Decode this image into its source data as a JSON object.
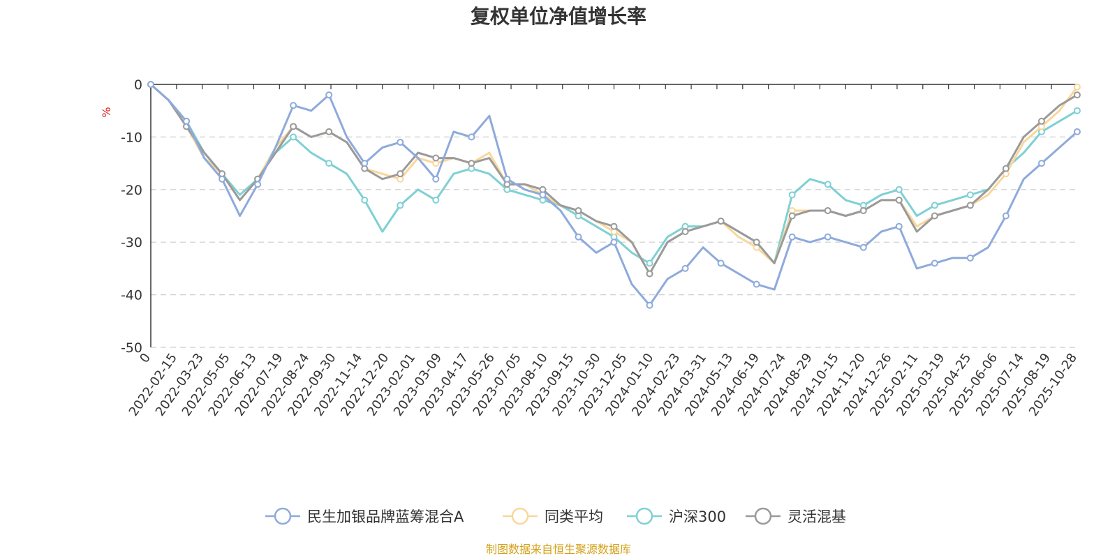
{
  "chart_data": {
    "type": "line",
    "title": "复权单位净值增长率",
    "ylabel": "%",
    "ylim": [
      -50,
      0
    ],
    "yticks": [
      0,
      -10,
      -20,
      -30,
      -40,
      -50
    ],
    "grid": true,
    "legend_position": "bottom",
    "x_labels": [
      "0",
      "2022-02-15",
      "2022-03-23",
      "2022-05-05",
      "2022-06-13",
      "2022-07-19",
      "2022-08-24",
      "2022-09-30",
      "2022-11-14",
      "2022-12-20",
      "2023-02-01",
      "2023-03-09",
      "2023-04-17",
      "2023-05-26",
      "2023-07-05",
      "2023-08-10",
      "2023-09-15",
      "2023-10-30",
      "2023-12-05",
      "2024-01-10",
      "2024-02-23",
      "2024-03-31",
      "2024-05-13",
      "2024-06-19",
      "2024-07-24",
      "2024-08-29",
      "2024-10-15",
      "2024-11-20",
      "2024-12-26",
      "2025-02-11",
      "2025-03-19",
      "2025-04-25",
      "2025-06-06",
      "2025-07-14",
      "2025-08-19",
      "2025-10-28"
    ],
    "series": [
      {
        "name": "民生加银品牌蓝筹混合A",
        "color": "#8eaadc",
        "values": [
          0,
          -3,
          -7,
          -14,
          -18,
          -25,
          -19,
          -12,
          -4,
          -5,
          -2,
          -10,
          -15,
          -12,
          -11,
          -14,
          -18,
          -9,
          -10,
          -6,
          -18,
          -20,
          -21,
          -24,
          -29,
          -32,
          -30,
          -38,
          -42,
          -37,
          -35,
          -31,
          -34,
          -36,
          -38,
          -39,
          -29,
          -30,
          -29,
          -30,
          -31,
          -28,
          -27,
          -35,
          -34,
          -33,
          -33,
          -31,
          -25,
          -18,
          -15,
          -12,
          -9
        ]
      },
      {
        "name": "同类平均",
        "color": "#f9d79b",
        "values": [
          0,
          -3,
          -8,
          -14,
          -17,
          -22,
          -18,
          -12,
          -8,
          -10,
          -9,
          -11,
          -16,
          -17,
          -18,
          -14,
          -15,
          -14,
          -15,
          -13,
          -19,
          -19,
          -21,
          -23,
          -24,
          -26,
          -28,
          -30,
          -36,
          -30,
          -28,
          -27,
          -26,
          -29,
          -31,
          -34,
          -24,
          -24,
          -24,
          -25,
          -24,
          -22,
          -22,
          -27,
          -25,
          -24,
          -23,
          -21,
          -17,
          -11,
          -8,
          -5,
          -0.5
        ]
      },
      {
        "name": "沪深300",
        "color": "#7fd0d4",
        "values": [
          0,
          -3,
          -7,
          -13,
          -17,
          -21,
          -18,
          -13,
          -10,
          -13,
          -15,
          -17,
          -22,
          -28,
          -23,
          -20,
          -22,
          -17,
          -16,
          -17,
          -20,
          -21,
          -22,
          -23,
          -25,
          -27,
          -29,
          -32,
          -34,
          -29,
          -27,
          -27,
          -26,
          -28,
          -30,
          -34,
          -21,
          -18,
          -19,
          -22,
          -23,
          -21,
          -20,
          -25,
          -23,
          -22,
          -21,
          -20,
          -16,
          -13,
          -9,
          -7,
          -5
        ]
      },
      {
        "name": "灵活混基",
        "color": "#9a9a9a",
        "values": [
          0,
          -3,
          -8,
          -13,
          -17,
          -22,
          -18,
          -13,
          -8,
          -10,
          -9,
          -11,
          -16,
          -18,
          -17,
          -13,
          -14,
          -14,
          -15,
          -14,
          -19,
          -19,
          -20,
          -23,
          -24,
          -26,
          -27,
          -30,
          -36,
          -30,
          -28,
          -27,
          -26,
          -28,
          -30,
          -34,
          -25,
          -24,
          -24,
          -25,
          -24,
          -22,
          -22,
          -28,
          -25,
          -24,
          -23,
          -20,
          -16,
          -10,
          -7,
          -4,
          -2
        ]
      }
    ]
  },
  "source_text": "制图数据来自恒生聚源数据库"
}
